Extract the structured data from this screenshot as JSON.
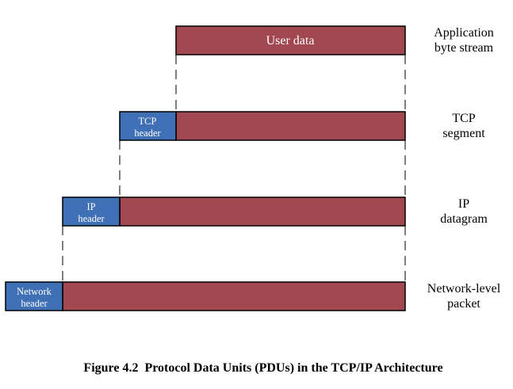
{
  "colors": {
    "data": "#a0474f",
    "header": "#3f6fb5",
    "border": "#000000"
  },
  "layers": [
    {
      "id": "application",
      "headers": [],
      "payload_label": "User data",
      "side_label": [
        "Application",
        "byte stream"
      ]
    },
    {
      "id": "tcp",
      "headers": [
        [
          "TCP",
          "header"
        ]
      ],
      "payload_label": "",
      "side_label": [
        "TCP",
        "segment"
      ]
    },
    {
      "id": "ip",
      "headers": [
        [
          "IP",
          "header"
        ]
      ],
      "payload_label": "",
      "side_label": [
        "IP",
        "datagram"
      ]
    },
    {
      "id": "network",
      "headers": [
        [
          "Network",
          "header"
        ]
      ],
      "payload_label": "",
      "side_label": [
        "Network-level",
        "packet"
      ]
    }
  ],
  "caption": "Figure 4.2  Protocol Data Units (PDUs) in the TCP/IP Architecture"
}
